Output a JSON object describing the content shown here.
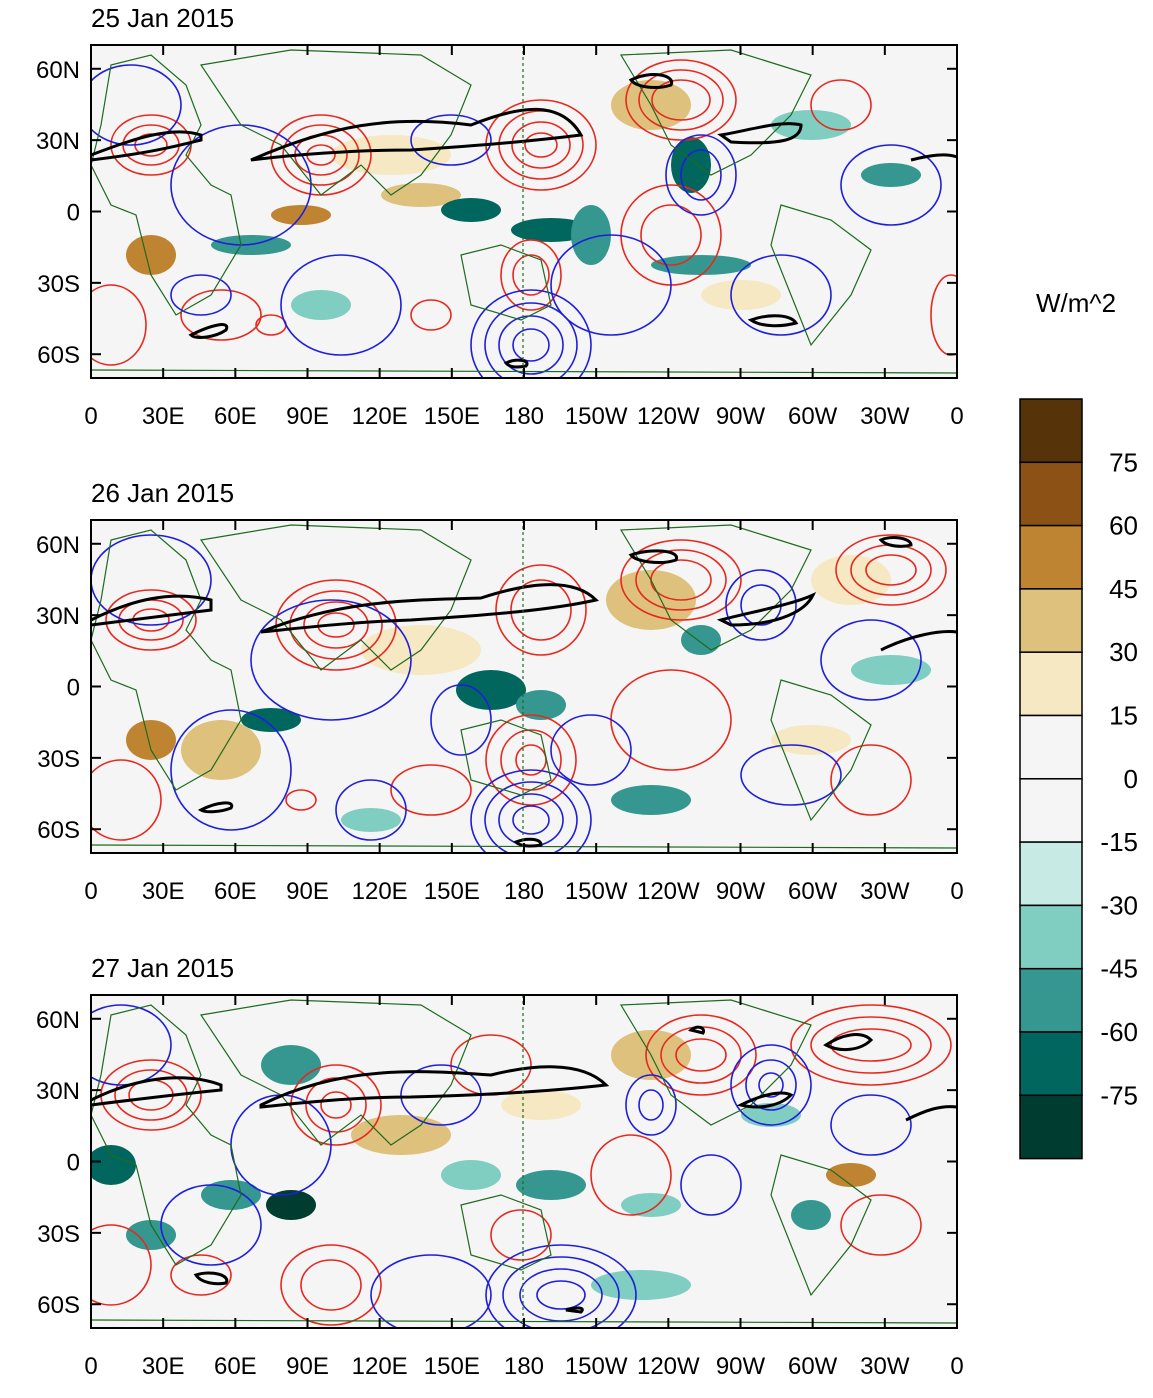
{
  "panels": [
    {
      "date": "25 Jan 2015"
    },
    {
      "date": "26 Jan 2015"
    },
    {
      "date": "27 Jan 2015"
    }
  ],
  "axes": {
    "lat_labels": [
      "60N",
      "30N",
      "0",
      "30S",
      "60S"
    ],
    "lon_labels": [
      "0",
      "30E",
      "60E",
      "90E",
      "120E",
      "150E",
      "180",
      "150W",
      "120W",
      "90W",
      "60W",
      "30W",
      "0"
    ]
  },
  "colorbar": {
    "units": "W/m^2",
    "levels": [
      "75",
      "60",
      "45",
      "30",
      "15",
      "0",
      "-15",
      "-30",
      "-45",
      "-60",
      "-75"
    ],
    "colors": [
      "#573309",
      "#8c5115",
      "#bf8431",
      "#dec17d",
      "#f5e8c3",
      "#f5f5f5",
      "#f5f5f5",
      "#c7eae5",
      "#80cdc1",
      "#35978f",
      "#01665e",
      "#003c30"
    ]
  },
  "contour_colors": {
    "positive": "#e8281e",
    "negative": "#1e1edb",
    "jet": "#000000",
    "coast": "#1e6b1e"
  }
}
